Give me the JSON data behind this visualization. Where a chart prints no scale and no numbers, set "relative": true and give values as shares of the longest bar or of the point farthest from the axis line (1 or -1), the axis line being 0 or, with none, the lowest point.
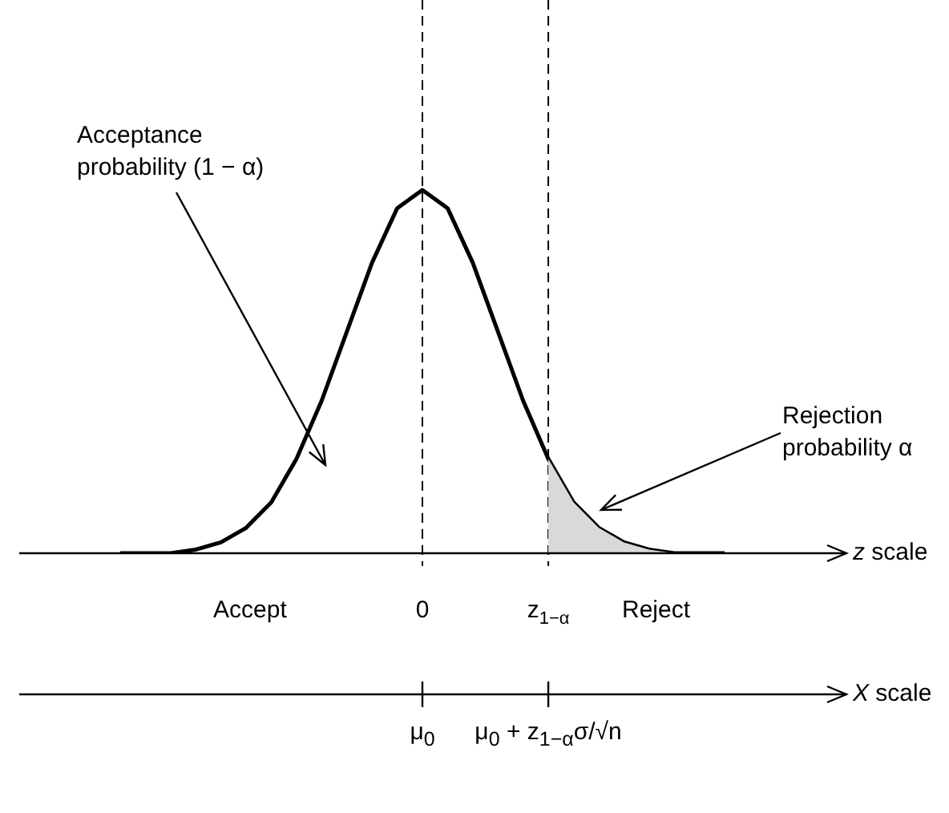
{
  "chart_data": {
    "type": "line",
    "relative": true,
    "marker": "none",
    "xlabel": "z scale",
    "categories": [
      null,
      null,
      null,
      null,
      null,
      null,
      null,
      null,
      null,
      null,
      null,
      null,
      "0",
      null,
      null,
      null,
      null,
      "z$_{1−α}$",
      null,
      null,
      null,
      null,
      null,
      null,
      null
    ],
    "series": [
      {
        "type": "line",
        "color": "#000000",
        "values": [
          0,
          0,
          0,
          0.01,
          0.03,
          0.07,
          0.14,
          0.26,
          0.42,
          0.61,
          0.8,
          0.95,
          1,
          0.95,
          0.8,
          0.61,
          0.42,
          0.26,
          0.14,
          0.07,
          0.03,
          0.01,
          0,
          0,
          0
        ]
      },
      {
        "type": "area",
        "color": "#d9d9d9",
        "values": [
          null,
          null,
          null,
          null,
          null,
          null,
          null,
          null,
          null,
          null,
          null,
          null,
          null,
          null,
          null,
          null,
          null,
          0.26,
          0.14,
          0.07,
          0.03,
          0.01,
          0,
          0,
          0
        ]
      }
    ],
    "ref_lines": [
      {
        "axis": "x",
        "value": "0",
        "line_style": "dashed"
      },
      {
        "axis": "x",
        "value": "z$_{1−α}$",
        "line_style": "dashed"
      }
    ],
    "annotations": [
      "Acceptance probability (1 − α)",
      "Rejection probability α",
      "Accept",
      "Reject",
      {
        "text": "μ$_{0}$",
        "x": "0"
      },
      {
        "text": "μ$_{0}$ + z$_{1−α}$σ/√n",
        "x": "z$_{1−α}$"
      },
      "X scale"
    ]
  }
}
